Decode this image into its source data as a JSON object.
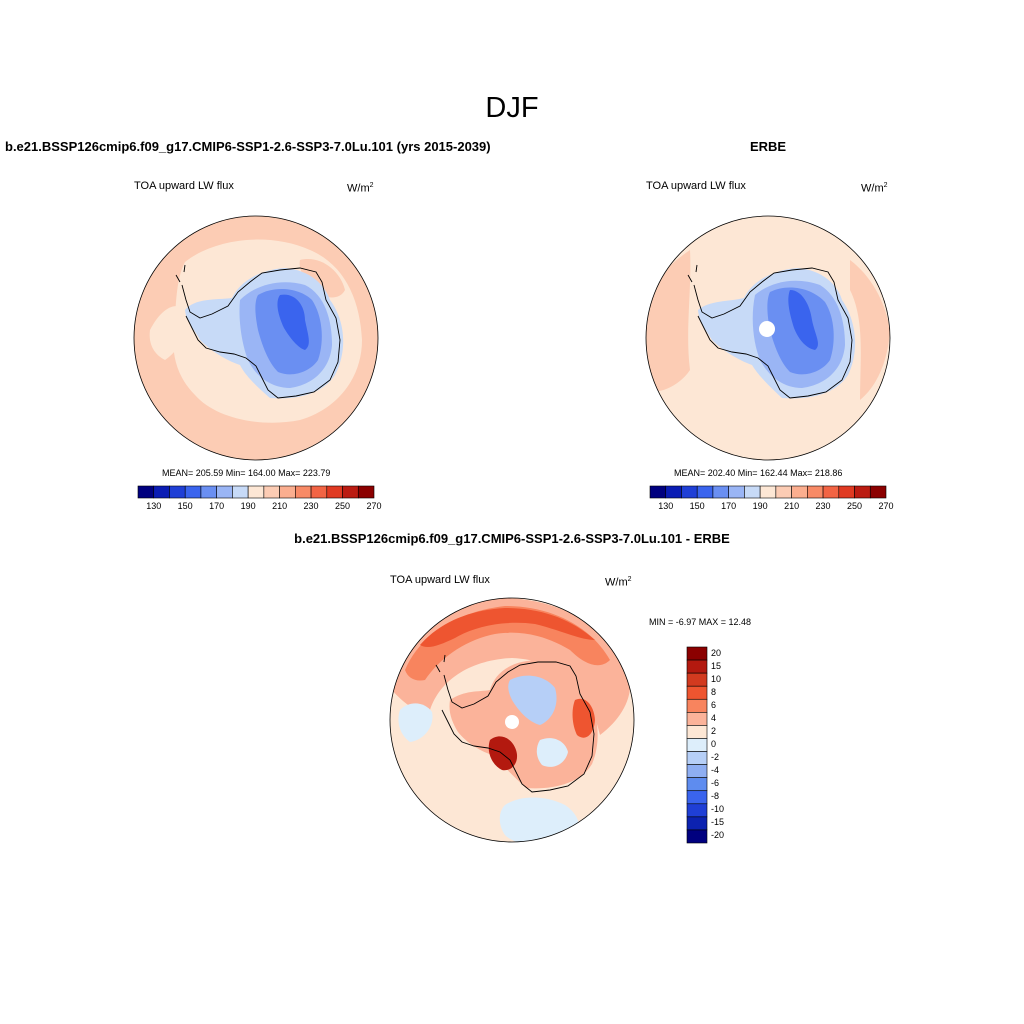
{
  "figure": {
    "main_title": "DJF",
    "panels": [
      {
        "id": "model",
        "title": "b.e21.BSSP126cmip6.f09_g17.CMIP6-SSP1-2.6-SSP3-7.0Lu.101 (yrs 2015-2039)",
        "variable": "TOA upward LW flux",
        "unit_base": "W/m",
        "unit_exp": "2",
        "stats": "MEAN= 205.59  Min= 164.00  Max= 223.79",
        "colorbar_labels": [
          "130",
          "150",
          "170",
          "190",
          "210",
          "230",
          "250",
          "270"
        ]
      },
      {
        "id": "obs",
        "title": "ERBE",
        "variable": "TOA upward LW flux",
        "unit_base": "W/m",
        "unit_exp": "2",
        "stats": "MEAN= 202.40  Min= 162.44  Max= 218.86",
        "colorbar_labels": [
          "130",
          "150",
          "170",
          "190",
          "210",
          "230",
          "250",
          "270"
        ]
      },
      {
        "id": "diff",
        "title": "b.e21.BSSP126cmip6.f09_g17.CMIP6-SSP1-2.6-SSP3-7.0Lu.101 - ERBE",
        "variable": "TOA upward LW flux",
        "unit_base": "W/m",
        "unit_exp": "2",
        "stats": "MIN =  -6.97 MAX =  12.48",
        "colorbar_labels": [
          "20",
          "15",
          "10",
          "8",
          "6",
          "4",
          "2",
          "0",
          "-2",
          "-4",
          "-6",
          "-8",
          "-10",
          "-15",
          "-20"
        ]
      }
    ],
    "abs_colorbar": {
      "levels": [
        130,
        140,
        150,
        160,
        170,
        180,
        190,
        200,
        210,
        220,
        230,
        240,
        250,
        260,
        270
      ],
      "colors": [
        "#00007f",
        "#0a1cb4",
        "#1f3fd6",
        "#3a64ee",
        "#6a8ff2",
        "#9ab5f5",
        "#c7daf7",
        "#fde7d5",
        "#fcccb4",
        "#fbae8f",
        "#f88a66",
        "#f26444",
        "#e03a22",
        "#bb1c12",
        "#8b0000"
      ]
    },
    "diff_colorbar": {
      "colors_top_to_bottom": [
        "#8b0000",
        "#b3190f",
        "#d23a1f",
        "#ee5530",
        "#f8845e",
        "#fbb39a",
        "#fde7d5",
        "#ddeefb",
        "#b6cff7",
        "#8eaef2",
        "#5e8cef",
        "#3a64ee",
        "#1f3fd6",
        "#0c22b0",
        "#00007f"
      ]
    },
    "map_colors": {
      "ocean_warm": "#fcccb4",
      "ocean_light": "#fde7d5",
      "ice_light": "#c7daf7",
      "ice_mid": "#9ab5f5",
      "ice_deep": "#6a8ff2",
      "ice_core": "#3a64ee",
      "diff_strong": "#ee5530",
      "diff_mid": "#f8845e",
      "diff_low": "#fbb39a",
      "diff_neutral": "#fde7d5",
      "diff_neg": "#ddeefb",
      "diff_neg2": "#b6cff7",
      "diff_dark": "#b3190f"
    }
  }
}
